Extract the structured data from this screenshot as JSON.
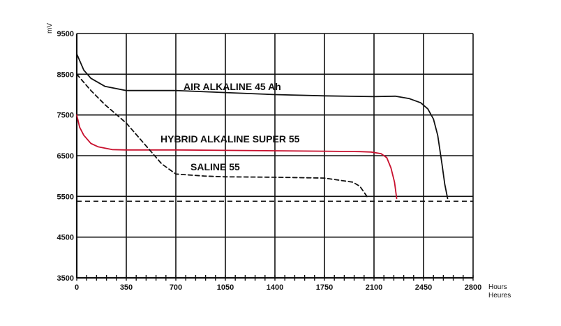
{
  "chart_data": {
    "type": "line",
    "ylabel": "mV",
    "xlabel_line1": "Hours",
    "xlabel_line2": "Heures",
    "xlim": [
      0,
      2800
    ],
    "ylim": [
      3500,
      9500
    ],
    "x_ticks": [
      0,
      350,
      700,
      1050,
      1400,
      1750,
      2100,
      2450,
      2800
    ],
    "y_ticks": [
      3500,
      4500,
      5500,
      6500,
      7500,
      8500,
      9500
    ],
    "grid": true,
    "cutoff_voltage": 5380,
    "series": [
      {
        "name": "AIR ALKALINE 45 Ah",
        "color": "#111111",
        "style": "solid",
        "x": [
          0,
          50,
          100,
          200,
          350,
          700,
          1050,
          1400,
          1750,
          2100,
          2250,
          2350,
          2430,
          2480,
          2520,
          2550,
          2580,
          2600,
          2620
        ],
        "y": [
          9000,
          8600,
          8400,
          8200,
          8100,
          8100,
          8050,
          8000,
          7970,
          7950,
          7960,
          7900,
          7800,
          7650,
          7400,
          7000,
          6300,
          5800,
          5450
        ]
      },
      {
        "name": "HYBRID ALKALINE SUPER 55",
        "color": "#c8102e",
        "style": "solid",
        "x": [
          0,
          20,
          50,
          100,
          150,
          250,
          350,
          700,
          1050,
          1400,
          1750,
          2000,
          2080,
          2150,
          2190,
          2220,
          2245,
          2260
        ],
        "y": [
          7500,
          7200,
          7000,
          6800,
          6720,
          6650,
          6640,
          6640,
          6630,
          6620,
          6610,
          6600,
          6590,
          6550,
          6450,
          6200,
          5850,
          5450
        ]
      },
      {
        "name": "SALINE 55",
        "color": "#111111",
        "style": "dashed",
        "x": [
          0,
          50,
          100,
          200,
          350,
          500,
          600,
          700,
          900,
          1050,
          1400,
          1750,
          1950,
          2000,
          2030,
          2060
        ],
        "y": [
          8500,
          8300,
          8100,
          7750,
          7300,
          6700,
          6300,
          6050,
          6000,
          5980,
          5970,
          5950,
          5850,
          5750,
          5600,
          5450
        ]
      }
    ]
  }
}
